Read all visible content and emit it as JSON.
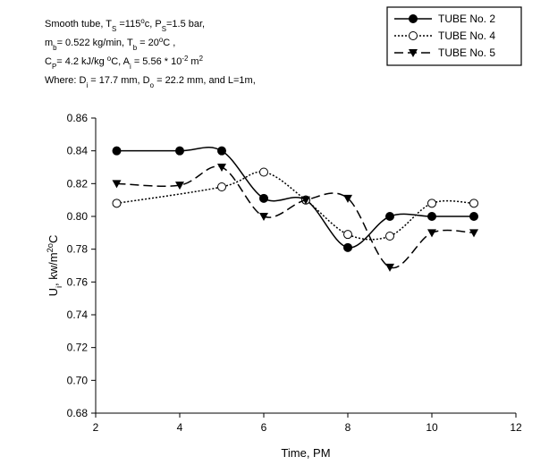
{
  "chart_data": {
    "type": "line",
    "annotation": [
      [
        "Smooth tube, T",
        {
          "sub": "S"
        },
        " =115",
        {
          "sup": "o"
        },
        "c, P",
        {
          "sub": "S"
        },
        "=1.5 bar,"
      ],
      [
        "m",
        {
          "sub": "b"
        },
        "= 0.522 kg/min, T",
        {
          "sub": "b"
        },
        " = 20",
        {
          "sup": "o"
        },
        "C ,"
      ],
      [
        "C",
        {
          "sub": "P"
        },
        "= 4.2 kJ/kg ",
        {
          "sup": "o"
        },
        "C, A",
        {
          "sub": "i"
        },
        " = 5.56 * 10",
        {
          "sup": "-2"
        },
        " m",
        {
          "sup": "2"
        }
      ],
      [
        "Where: D",
        {
          "sub": "i"
        },
        " = 17.7 mm, D",
        {
          "sub": "o"
        },
        " = 22.2 mm, and L=1m,"
      ]
    ],
    "x_label": "Time, PM",
    "y_label": [
      "U",
      {
        "sub": "i"
      },
      ", kw/m",
      {
        "sup": "2o"
      },
      "C"
    ],
    "xlim": [
      2,
      12
    ],
    "xticks": [
      2,
      4,
      6,
      8,
      10,
      12
    ],
    "ylim": [
      0.68,
      0.86
    ],
    "yticks": [
      0.68,
      {
        "value": 0.7,
        "label": "0.70"
      },
      0.72,
      0.74,
      0.76,
      0.78,
      {
        "value": 0.8,
        "label": "0.80"
      },
      0.82,
      0.84,
      0.86
    ],
    "legend": "top-right",
    "series": [
      {
        "name": "TUBE No. 2",
        "color": "#000000",
        "dash": "solid",
        "marker": "filled-circle",
        "x": [
          2.5,
          4,
          5,
          6,
          7,
          8,
          9,
          10,
          11
        ],
        "values": [
          0.84,
          0.84,
          0.84,
          0.811,
          0.81,
          0.781,
          0.8,
          0.8,
          0.8
        ]
      },
      {
        "name": "TUBE No. 4",
        "color": "#000000",
        "dash": "dotted",
        "marker": "open-circle",
        "x": [
          2.5,
          5,
          6,
          7,
          8,
          9,
          10,
          11
        ],
        "values": [
          0.808,
          0.818,
          0.827,
          0.81,
          0.789,
          0.788,
          0.808,
          0.808
        ]
      },
      {
        "name": "TUBE No. 5",
        "color": "#000000",
        "dash": "dashed",
        "marker": "triangle",
        "x": [
          2.5,
          4,
          5,
          6,
          7,
          8,
          9,
          10,
          11
        ],
        "values": [
          0.82,
          0.819,
          0.83,
          0.8,
          0.81,
          0.811,
          0.769,
          0.79,
          0.79
        ]
      }
    ]
  }
}
